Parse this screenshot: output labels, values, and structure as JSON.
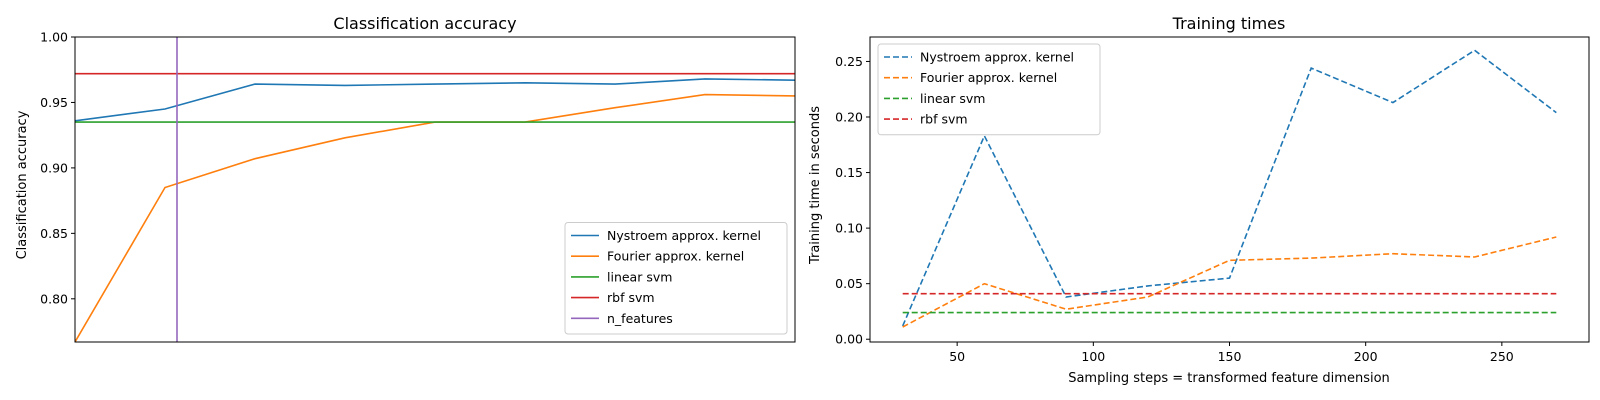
{
  "chart_data": [
    {
      "type": "line",
      "title": "Classification accuracy",
      "xlabel": "",
      "ylabel": "Classification accuracy",
      "x": [
        30,
        60,
        90,
        120,
        150,
        180,
        210,
        240,
        270
      ],
      "xlim": [
        30,
        270
      ],
      "ylim": [
        0.767,
        1.0
      ],
      "yticks": [
        0.8,
        0.85,
        0.9,
        0.95,
        1.0
      ],
      "ytick_labels": [
        "0.80",
        "0.85",
        "0.90",
        "0.95",
        "1.00"
      ],
      "legend_position": "lower right",
      "series": [
        {
          "name": "Nystroem approx. kernel",
          "style": "solid",
          "color": "#1f77b4",
          "values": [
            0.936,
            0.945,
            0.964,
            0.963,
            0.964,
            0.965,
            0.964,
            0.968,
            0.967
          ]
        },
        {
          "name": "Fourier approx. kernel",
          "style": "solid",
          "color": "#ff7f0e",
          "values": [
            0.767,
            0.885,
            0.907,
            0.923,
            0.935,
            0.935,
            0.946,
            0.956,
            0.955
          ]
        },
        {
          "name": "linear svm",
          "style": "solid",
          "color": "#2ca02c",
          "hline": 0.935
        },
        {
          "name": "rbf svm",
          "style": "solid",
          "color": "#d62728",
          "hline": 0.972
        },
        {
          "name": "n_features",
          "style": "solid",
          "color": "#9467bd",
          "vline": 64
        }
      ]
    },
    {
      "type": "line",
      "title": "Training times",
      "xlabel": "Sampling steps = transformed feature dimension",
      "ylabel": "Training time in seconds",
      "x": [
        30,
        60,
        90,
        120,
        150,
        180,
        210,
        240,
        270
      ],
      "xlim": [
        18,
        282
      ],
      "ylim": [
        -0.0025,
        0.272
      ],
      "xticks": [
        50,
        100,
        150,
        200,
        250
      ],
      "xtick_labels": [
        "50",
        "100",
        "150",
        "200",
        "250"
      ],
      "yticks": [
        0.0,
        0.05,
        0.1,
        0.15,
        0.2,
        0.25
      ],
      "ytick_labels": [
        "0.00",
        "0.05",
        "0.10",
        "0.15",
        "0.20",
        "0.25"
      ],
      "legend_position": "upper left",
      "series": [
        {
          "name": "Nystroem approx. kernel",
          "style": "dashed",
          "color": "#1f77b4",
          "values": [
            0.012,
            0.183,
            0.038,
            0.048,
            0.055,
            0.244,
            0.213,
            0.26,
            0.204
          ]
        },
        {
          "name": "Fourier approx. kernel",
          "style": "dashed",
          "color": "#ff7f0e",
          "values": [
            0.011,
            0.05,
            0.027,
            0.038,
            0.071,
            0.073,
            0.077,
            0.074,
            0.092
          ]
        },
        {
          "name": "linear svm",
          "style": "dashed",
          "color": "#2ca02c",
          "values": [
            0.024,
            0.024,
            0.024,
            0.024,
            0.024,
            0.024,
            0.024,
            0.024,
            0.024
          ]
        },
        {
          "name": "rbf svm",
          "style": "dashed",
          "color": "#d62728",
          "values": [
            0.041,
            0.041,
            0.041,
            0.041,
            0.041,
            0.041,
            0.041,
            0.041,
            0.041
          ]
        }
      ]
    }
  ]
}
